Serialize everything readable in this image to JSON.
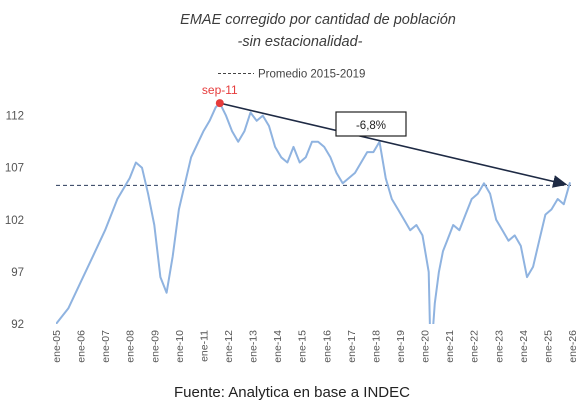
{
  "chart_data": {
    "type": "line",
    "title": "EMAE corregido por cantidad de población",
    "subtitle": "-sin estacionalidad-",
    "reference_line": {
      "label": "Promedio 2015-2019",
      "value": 105.3,
      "style": "dashed"
    },
    "ylim": [
      92,
      113.5
    ],
    "yticks": [
      92,
      97,
      102,
      107,
      112
    ],
    "xlim": [
      "2005-01",
      "2026-01"
    ],
    "xticks": [
      "ene-05",
      "ene-06",
      "ene-07",
      "ene-08",
      "ene-09",
      "ene-10",
      "ene-11",
      "ene-12",
      "ene-13",
      "ene-14",
      "ene-15",
      "ene-16",
      "ene-17",
      "ene-18",
      "ene-19",
      "ene-20",
      "ene-21",
      "ene-22",
      "ene-23",
      "ene-24",
      "ene-25",
      "ene-26"
    ],
    "peak": {
      "label": "sep-11",
      "x": "2011-09",
      "y": 113.2
    },
    "trend_annotation": {
      "label": "-6,8%",
      "from": {
        "x": "2011-09",
        "y": 113.2
      },
      "to": {
        "x": "2025-10",
        "y": 105.4
      }
    },
    "series": [
      {
        "color": "#8fb3e0",
        "x": [
          "2005-01",
          "2005-07",
          "2006-01",
          "2006-07",
          "2007-01",
          "2007-07",
          "2008-01",
          "2008-04",
          "2008-07",
          "2008-10",
          "2009-01",
          "2009-04",
          "2009-07",
          "2009-10",
          "2010-01",
          "2010-07",
          "2011-01",
          "2011-04",
          "2011-07",
          "2011-09",
          "2011-12",
          "2012-03",
          "2012-06",
          "2012-09",
          "2012-12",
          "2013-03",
          "2013-06",
          "2013-09",
          "2013-12",
          "2014-03",
          "2014-06",
          "2014-09",
          "2014-12",
          "2015-03",
          "2015-06",
          "2015-09",
          "2015-12",
          "2016-03",
          "2016-06",
          "2016-09",
          "2016-12",
          "2017-03",
          "2017-06",
          "2017-09",
          "2017-12",
          "2018-03",
          "2018-06",
          "2018-09",
          "2018-12",
          "2019-03",
          "2019-06",
          "2019-09",
          "2019-12",
          "2020-03",
          "2020-04",
          "2020-06",
          "2020-08",
          "2020-10",
          "2020-12",
          "2021-03",
          "2021-06",
          "2021-09",
          "2021-12",
          "2022-03",
          "2022-06",
          "2022-09",
          "2022-12",
          "2023-03",
          "2023-06",
          "2023-09",
          "2023-12",
          "2024-03",
          "2024-06",
          "2024-09",
          "2024-12",
          "2025-03",
          "2025-06",
          "2025-09",
          "2025-12"
        ],
        "values": [
          92,
          93.5,
          96,
          98.5,
          101,
          104,
          106,
          107.5,
          107,
          104.5,
          101.5,
          96.5,
          95,
          98.5,
          103,
          108,
          110.5,
          111.5,
          112.8,
          113.2,
          112,
          110.5,
          109.5,
          110.5,
          112.3,
          111.5,
          112,
          111,
          109,
          108,
          107.5,
          109,
          107.5,
          108,
          109.5,
          109.5,
          109,
          108,
          106.5,
          105.5,
          106,
          106.5,
          107.5,
          108.5,
          108.5,
          109.5,
          106,
          104,
          103,
          102,
          101,
          101.5,
          100.5,
          97,
          88.5,
          94,
          97,
          99,
          100,
          101.5,
          101,
          102.5,
          104,
          104.5,
          105.5,
          104.5,
          102,
          101,
          100,
          100.5,
          99.5,
          96.5,
          97.5,
          100,
          102.5,
          103,
          104,
          103.5,
          105.6
        ]
      }
    ],
    "source": "Fuente: Analytica en base a INDEC"
  }
}
